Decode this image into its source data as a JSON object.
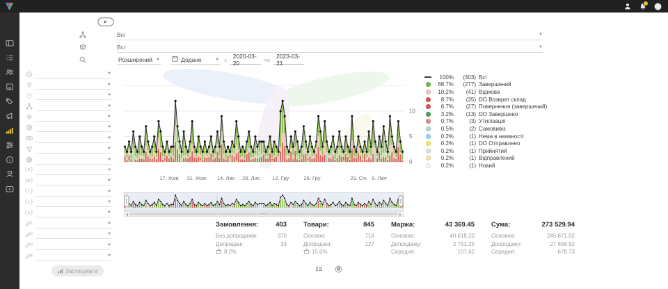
{
  "topbar": {
    "icons": [
      {
        "name": "profile"
      },
      {
        "name": "notifications",
        "badge": true
      },
      {
        "name": "account"
      }
    ],
    "badge_color": "#f0c330"
  },
  "sidebar": {
    "active": "analytics",
    "items": [
      {
        "name": "dashboard"
      },
      {
        "name": "orders"
      },
      {
        "name": "customers"
      },
      {
        "name": "store"
      },
      {
        "name": "tags"
      },
      {
        "name": "announcements"
      },
      {
        "name": "analytics"
      },
      {
        "name": "settings"
      },
      {
        "name": "info"
      },
      {
        "name": "support"
      },
      {
        "name": "video"
      }
    ]
  },
  "filters": {
    "category": {
      "value": "Всі"
    },
    "product": {
      "value": "Всі"
    },
    "search_mode": {
      "value": "Розширений"
    },
    "date_field": {
      "value": "Додане"
    },
    "from_label": "з",
    "date_from": "2020-03-20",
    "to_label": "по",
    "date_to": "2023-03-21",
    "apply": {
      "label": "Застосувати"
    },
    "rows": [
      {
        "icon": "globe-dot",
        "value": ""
      },
      {
        "icon": "funnel-lines",
        "value": ""
      },
      {
        "icon": "status-disabled",
        "value": ""
      },
      {
        "icon": "hierarchy",
        "value": ""
      },
      {
        "icon": "fingerprint",
        "value": ""
      },
      {
        "icon": "cube",
        "value": ""
      },
      {
        "icon": "banknote",
        "value": ""
      },
      {
        "icon": "funnel",
        "value": ""
      },
      {
        "icon": "globe",
        "value": ""
      },
      {
        "icon": "var-s",
        "value": ""
      },
      {
        "icon": "var-m",
        "value": ""
      },
      {
        "icon": "var-t",
        "value": ""
      },
      {
        "icon": "var-c",
        "value": ""
      },
      {
        "icon": "var-x",
        "value": ""
      }
    ],
    "custom_rows": [
      {
        "icon": "pencil",
        "num": "1",
        "value": ""
      },
      {
        "icon": "pencil",
        "num": "2",
        "value": ""
      },
      {
        "icon": "pencil",
        "num": "3",
        "value": ""
      },
      {
        "icon": "pencil",
        "num": "4",
        "value": ""
      }
    ]
  },
  "chart_data": {
    "type": "line+stacked-bar",
    "ylim": [
      0,
      18
    ],
    "yticks": [
      0,
      5,
      10
    ],
    "grid": true,
    "legend_position": "right",
    "colors": {
      "line": "#2f2f2f",
      "dot": "#141414",
      "area": "#b5d98c",
      "bar_green": "#8fbf4d",
      "bar_red": "#dc5f5f",
      "bar_pink": "#efc6c6",
      "bar_yellow": "#efe35d",
      "bar_cyan": "#9fdde8",
      "nav_bg": "#e8edf6",
      "grid_line": "#ececec"
    },
    "x_ticks": [
      {
        "label": "17. Жов",
        "index": 21
      },
      {
        "label": "31. Жов",
        "index": 34
      },
      {
        "label": "14. Лис",
        "index": 48
      },
      {
        "label": "28. Лис",
        "index": 60
      },
      {
        "label": "12. Гру",
        "index": 74
      },
      {
        "label": "26. Гру",
        "index": 89
      },
      {
        "label": "23. Січ",
        "index": 111
      },
      {
        "label": "6. Лют",
        "index": 121
      }
    ],
    "values": [
      3,
      2,
      4,
      2,
      6,
      3,
      2,
      5,
      3,
      2,
      7,
      4,
      2,
      3,
      5,
      2,
      8,
      6,
      3,
      2,
      4,
      2,
      3,
      3,
      12,
      7,
      4,
      2,
      6,
      3,
      2,
      4,
      8,
      3,
      2,
      5,
      3,
      2,
      4,
      2,
      3,
      5,
      2,
      3,
      6,
      3,
      9,
      4,
      2,
      3,
      2,
      4,
      3,
      8,
      5,
      2,
      3,
      2,
      4,
      6,
      3,
      2,
      5,
      3,
      4,
      4,
      4,
      2,
      3,
      5,
      2,
      4,
      3,
      2,
      10,
      12,
      9,
      3,
      2,
      5,
      3,
      6,
      4,
      2,
      3,
      7,
      4,
      2,
      5,
      3,
      2,
      4,
      9,
      6,
      3,
      8,
      4,
      2,
      3,
      5,
      2,
      3,
      6,
      3,
      2,
      5,
      3,
      2,
      9,
      3,
      2,
      5,
      3,
      2,
      4,
      2,
      6,
      3,
      8,
      4,
      2,
      5,
      3,
      7,
      4,
      2,
      9,
      5,
      3,
      2,
      8,
      4,
      2
    ],
    "legend": [
      {
        "pct": "100%",
        "count": 403,
        "label": "Всі",
        "color": "#3d3d3d",
        "shape": "dash"
      },
      {
        "pct": "68.7%",
        "count": 277,
        "label": "Завершений",
        "color": "#71bf44",
        "shape": "dot"
      },
      {
        "pct": "10.2%",
        "count": 41,
        "label": "Відмова",
        "color": "#f2c6c6",
        "shape": "dot"
      },
      {
        "pct": "8.7%",
        "count": 35,
        "label": "DO Возврат склад",
        "color": "#df5353",
        "shape": "dot"
      },
      {
        "pct": "6.7%",
        "count": 27,
        "label": "Повернення (завершений)",
        "color": "#df5353",
        "shape": "dot"
      },
      {
        "pct": "3.2%",
        "count": 13,
        "label": "DO Завершено",
        "color": "#48a648",
        "shape": "dot"
      },
      {
        "pct": "0.7%",
        "count": 3,
        "label": "Утилізація",
        "color": "#e68989",
        "shape": "dot"
      },
      {
        "pct": "0.5%",
        "count": 2,
        "label": "Самовивіз",
        "color": "#bcd8d4",
        "shape": "dot"
      },
      {
        "pct": "0.2%",
        "count": 1,
        "label": "Нема в наявності",
        "color": "#8edce9",
        "shape": "dot"
      },
      {
        "pct": "0.2%",
        "count": 1,
        "label": "DO Отправлено",
        "color": "#f4ed5c",
        "shape": "dot"
      },
      {
        "pct": "0.2%",
        "count": 1,
        "label": "Прийнятий",
        "color": "#dce8d4",
        "shape": "dot"
      },
      {
        "pct": "0.2%",
        "count": 1,
        "label": "Відправлений",
        "color": "#f0e9a8",
        "shape": "dot"
      },
      {
        "pct": "0.2%",
        "count": 1,
        "label": "Новий",
        "color": "#f7f7f7",
        "shape": "dot"
      }
    ]
  },
  "stats": {
    "columns": [
      {
        "title": "Замовлення:",
        "value": "403",
        "rows": [
          {
            "label": "Без допродажів:",
            "value": "370"
          },
          {
            "label": "Допродані:",
            "value": "33"
          },
          {
            "label": "",
            "value": "8.2%",
            "icon": "basket"
          }
        ]
      },
      {
        "title": "Товари:",
        "value": "845",
        "rows": [
          {
            "label": "Основні:",
            "value": "718"
          },
          {
            "label": "Допродані:",
            "value": "127"
          },
          {
            "label": "",
            "value": "15.0%",
            "icon": "basket"
          }
        ]
      },
      {
        "title": "Маржа:",
        "value": "43 369.45",
        "rows": [
          {
            "label": "Основна:",
            "value": "40 618.20"
          },
          {
            "label": "Допродажу:",
            "value": "2 751.25"
          },
          {
            "label": "Середня:",
            "value": "107.62"
          }
        ]
      },
      {
        "title": "Сума:",
        "value": "273 529.94",
        "rows": [
          {
            "label": "Основна:",
            "value": "245 871.02"
          },
          {
            "label": "Допродажу:",
            "value": "27 658.92"
          },
          {
            "label": "Середня:",
            "value": "678.73"
          }
        ]
      }
    ]
  },
  "footer": {
    "icons": [
      {
        "name": "list-view"
      },
      {
        "name": "product-view"
      }
    ]
  }
}
